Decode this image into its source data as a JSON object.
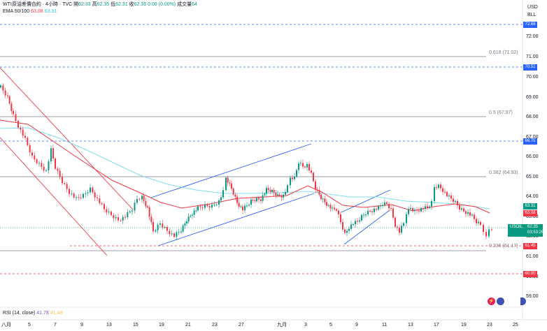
{
  "header": {
    "symbol_title": "WTI原油差價合約 · 4小時 · TVC",
    "open_label": "開",
    "open_value": "62.33",
    "high_label": "高",
    "high_value": "62.35",
    "low_label": "低",
    "low_value": "62.31",
    "close_label": "收",
    "close_value": "62.35",
    "change_value": "0.00 (0.00%)",
    "volume_label": "成交量",
    "volume_value": "64",
    "ema_label": "EMA 50/100",
    "ema50_value": "63.08",
    "ema100_value": "63.31"
  },
  "axis": {
    "currency": "USD",
    "unit": "BLL",
    "price_ticks": [
      "72.00",
      "71.00",
      "70.00",
      "69.00",
      "68.00",
      "67.00",
      "66.00",
      "65.00",
      "64.00",
      "63.00",
      "62.00",
      "61.00",
      "60.00",
      "59.00"
    ],
    "time_labels": [
      "八月",
      "5",
      "7",
      "9",
      "13",
      "15",
      "19",
      "21",
      "23",
      "27",
      "九月",
      "3",
      "5",
      "9",
      "11",
      "13",
      "17",
      "19",
      "23",
      "25"
    ]
  },
  "price_badges": [
    {
      "text": "72.68",
      "color": "#2962ff"
    },
    {
      "text": "70.51",
      "color": "#2962ff"
    },
    {
      "text": "66.75",
      "color": "#2962ff"
    },
    {
      "text": "63.31",
      "color": "#089981"
    },
    {
      "text": "63.08",
      "color": "#f23645"
    },
    {
      "text": "61.45",
      "color": "#f23645"
    },
    {
      "text": "60.00",
      "color": "#f23645"
    }
  ],
  "fib_labels": [
    "0.618 (71.02)",
    "0.5 (67.97)",
    "0.382 (64.93)",
    "0.236 (61.17)"
  ],
  "last_price": {
    "symbol": "USOIL",
    "price": "62.35",
    "countdown": "03:53:26"
  },
  "rsi": {
    "label": "RSI (14, close)",
    "value1": "41.78",
    "value2": "41.48"
  },
  "colors": {
    "up": "#089981",
    "down": "#f23645",
    "ema50": "#f23645",
    "ema100": "#80deea",
    "channel_down": "#f23645",
    "channel_up": "#2962ff",
    "level_blue": "#2962ff"
  }
}
